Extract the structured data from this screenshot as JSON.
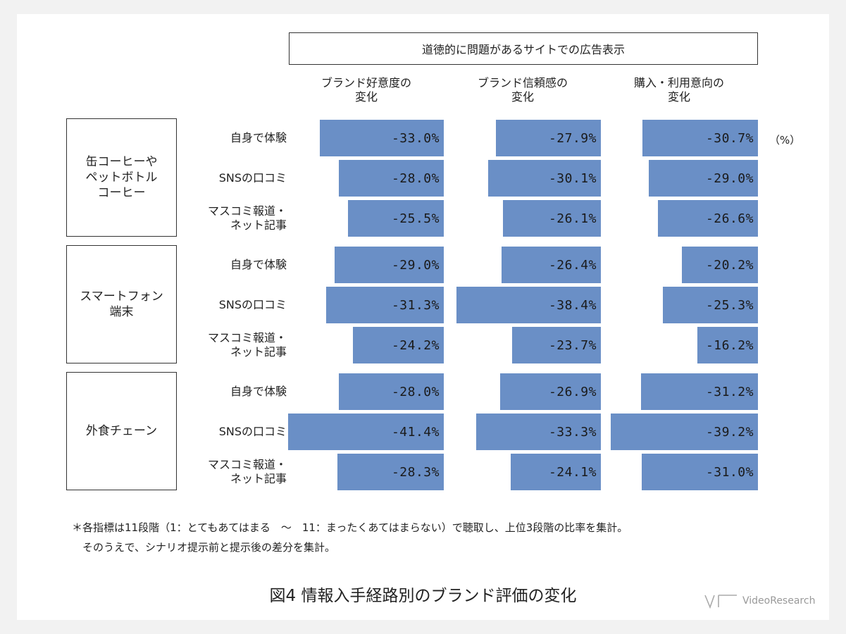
{
  "header": "道徳的に問題があるサイトでの広告表示",
  "unit": "（%）",
  "chart_data": {
    "type": "bar",
    "columns": [
      {
        "label": "ブランド好意度の\n変化"
      },
      {
        "label": "ブランド信頼感の\n変化"
      },
      {
        "label": "購入・利用意向の\n変化"
      }
    ],
    "groups": [
      {
        "label": "缶コーヒーや\nペットボトル\nコーヒー",
        "rows": [
          {
            "label": "自身で体験",
            "values": [
              -33.0,
              -27.9,
              -30.7
            ],
            "texts": [
              "-33.0%",
              "-27.9%",
              "-30.7%"
            ]
          },
          {
            "label": "SNSの口コミ",
            "values": [
              -28.0,
              -30.1,
              -29.0
            ],
            "texts": [
              "-28.0%",
              "-30.1%",
              "-29.0%"
            ]
          },
          {
            "label": "マスコミ報道・\nネット記事",
            "values": [
              -25.5,
              -26.1,
              -26.6
            ],
            "texts": [
              "-25.5%",
              "-26.1%",
              "-26.6%"
            ]
          }
        ]
      },
      {
        "label": "スマートフォン\n端末",
        "rows": [
          {
            "label": "自身で体験",
            "values": [
              -29.0,
              -26.4,
              -20.2
            ],
            "texts": [
              "-29.0%",
              "-26.4%",
              "-20.2%"
            ]
          },
          {
            "label": "SNSの口コミ",
            "values": [
              -31.3,
              -38.4,
              -25.3
            ],
            "texts": [
              "-31.3%",
              "-38.4%",
              "-25.3%"
            ]
          },
          {
            "label": "マスコミ報道・\nネット記事",
            "values": [
              -24.2,
              -23.7,
              -16.2
            ],
            "texts": [
              "-24.2%",
              "-23.7%",
              "-16.2%"
            ]
          }
        ]
      },
      {
        "label": "外食チェーン",
        "rows": [
          {
            "label": "自身で体験",
            "values": [
              -28.0,
              -26.9,
              -31.2
            ],
            "texts": [
              "-28.0%",
              "-26.9%",
              "-31.2%"
            ]
          },
          {
            "label": "SNSの口コミ",
            "values": [
              -41.4,
              -33.3,
              -39.2
            ],
            "texts": [
              "-41.4%",
              "-33.3%",
              "-39.2%"
            ]
          },
          {
            "label": "マスコミ報道・\nネット記事",
            "values": [
              -28.3,
              -24.1,
              -31.0
            ],
            "texts": [
              "-28.3%",
              "-24.1%",
              "-31.0%"
            ]
          }
        ]
      }
    ],
    "bar_color": "#6a8fc6"
  },
  "notes": [
    "＊各指標は11段階（1：とてもあてはまる　～　11：まったくあてはまらない）で聴取し、上位3段階の比率を集計。",
    "　そのうえで、シナリオ提示前と提示後の差分を集計。"
  ],
  "caption": "図4 情報入手経路別のブランド評価の変化",
  "logo": "VideoResearch"
}
